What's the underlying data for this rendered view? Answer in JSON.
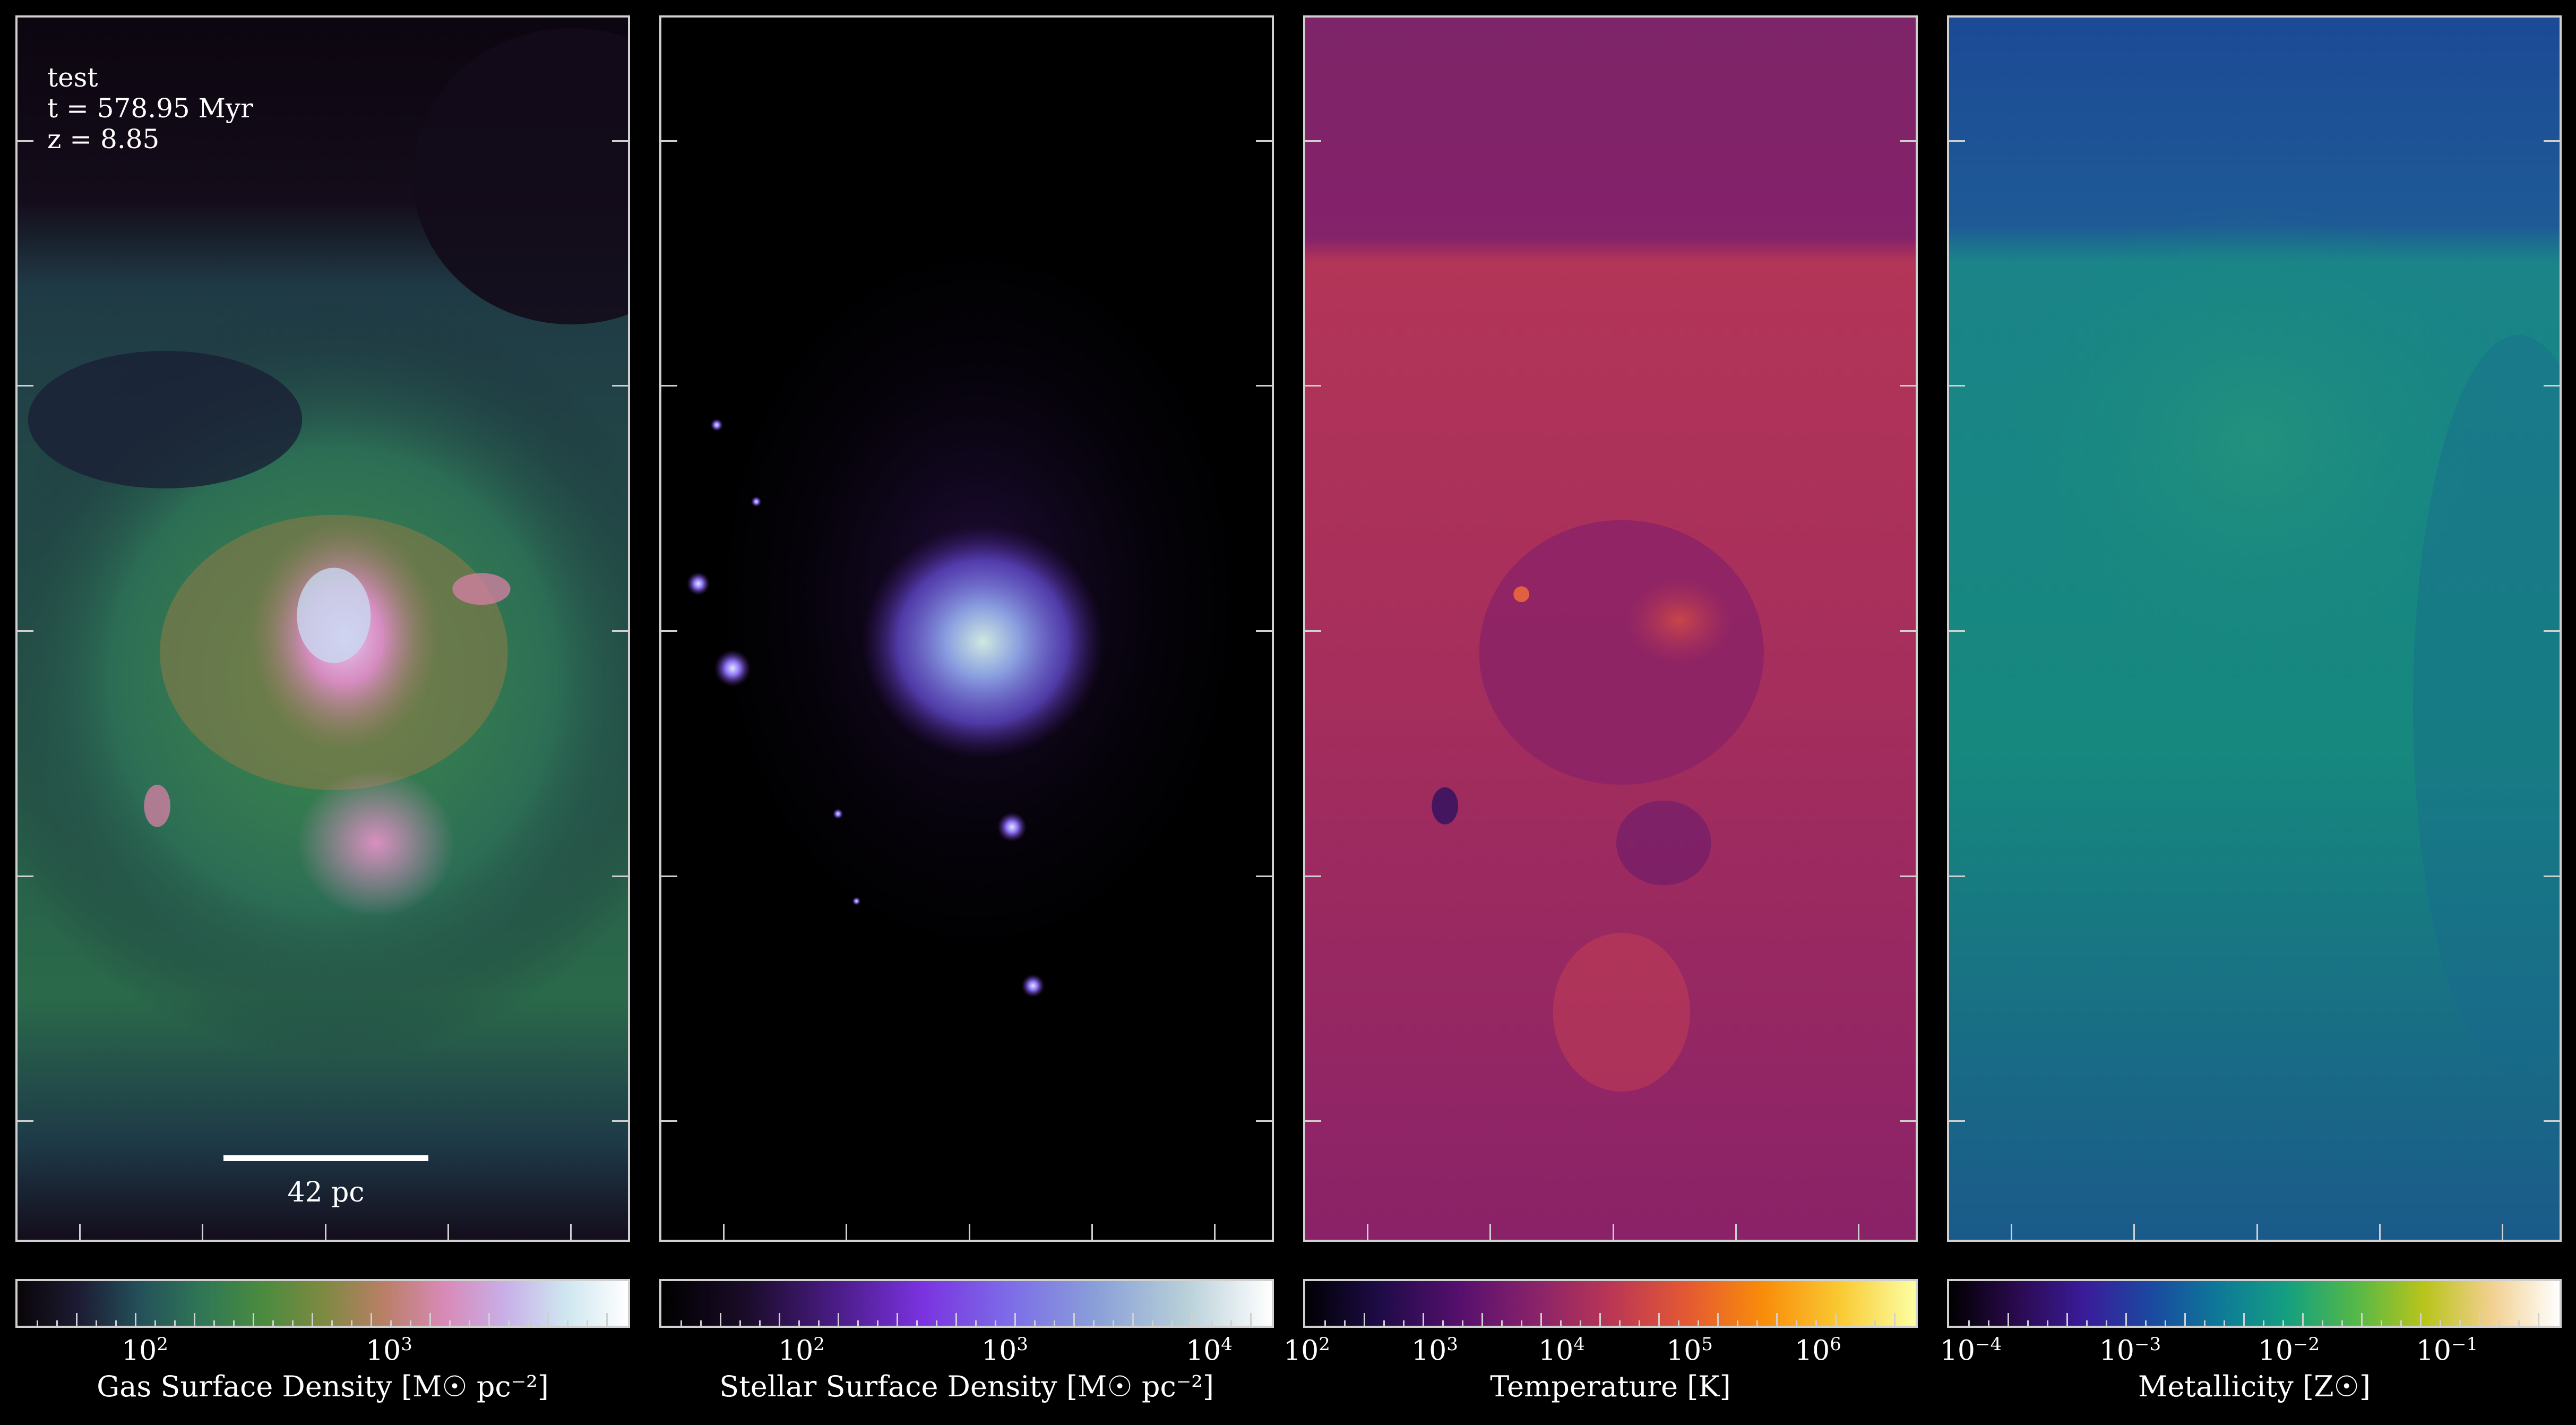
{
  "overlay": {
    "name": "test",
    "time": "t = 578.95 Myr",
    "redshift": "z = 8.85",
    "scalebar_label": "42 pc"
  },
  "panels": [
    {
      "id": "gas",
      "colorbar_label": "Gas Surface Density [M☉ pc⁻²]",
      "tick_labels": [
        {
          "base": "10",
          "exp": "2"
        },
        {
          "base": "10",
          "exp": "3"
        }
      ],
      "colormap": [
        "#0a0508",
        "#1d1b33",
        "#24505a",
        "#2f7656",
        "#4a8b3f",
        "#7d8a41",
        "#b97f66",
        "#d88ab8",
        "#c8b0e8",
        "#cfe7f0",
        "#ffffff"
      ]
    },
    {
      "id": "stars",
      "colorbar_label": "Stellar Surface Density [M☉ pc⁻²]",
      "tick_labels": [
        {
          "base": "10",
          "exp": "2"
        },
        {
          "base": "10",
          "exp": "3"
        },
        {
          "base": "10",
          "exp": "4"
        }
      ],
      "colormap": [
        "#000000",
        "#1b0c2a",
        "#4a1c86",
        "#7a33e0",
        "#7d6de8",
        "#8aa0d8",
        "#b7cfd8",
        "#ffffff"
      ]
    },
    {
      "id": "temperature",
      "colorbar_label": "Temperature [K]",
      "tick_labels": [
        {
          "base": "10",
          "exp": "2"
        },
        {
          "base": "10",
          "exp": "3"
        },
        {
          "base": "10",
          "exp": "4"
        },
        {
          "base": "10",
          "exp": "5"
        },
        {
          "base": "10",
          "exp": "6"
        }
      ],
      "colormap": [
        "#000004",
        "#1f0c48",
        "#550f6d",
        "#88226a",
        "#ba3655",
        "#e35933",
        "#f98c0a",
        "#f9c932",
        "#fcffa4"
      ]
    },
    {
      "id": "metallicity",
      "colorbar_label": "Metallicity [Z☉]",
      "tick_labels": [
        {
          "base": "10",
          "exp": "−4"
        },
        {
          "base": "10",
          "exp": "−3"
        },
        {
          "base": "10",
          "exp": "−2"
        },
        {
          "base": "10",
          "exp": "−1"
        }
      ],
      "colormap": [
        "#000000",
        "#2a0a4e",
        "#3a1c9a",
        "#1a4aa0",
        "#0e7a98",
        "#15a080",
        "#55b848",
        "#b8c41a",
        "#f2d090",
        "#ffffff"
      ]
    }
  ]
}
